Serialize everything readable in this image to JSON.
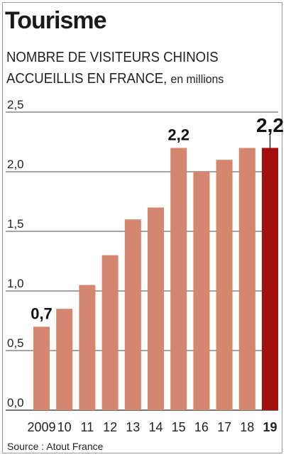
{
  "title": "Tourisme",
  "subtitle_line1": "NOMBRE DE VISITEURS CHINOIS",
  "subtitle_line2": "ACCUEILLIS EN FRANCE,",
  "subtitle_unit": "en millions",
  "source": "Source : Atout France",
  "colors": {
    "bar": "#d4866e",
    "highlight": "#a50e0e",
    "grid": "#4a4a4a",
    "text": "#222222"
  },
  "chart_data": {
    "type": "bar",
    "categories": [
      "2009",
      "10",
      "11",
      "12",
      "13",
      "14",
      "15",
      "16",
      "17",
      "18",
      "19"
    ],
    "values": [
      0.7,
      0.85,
      1.05,
      1.3,
      1.6,
      1.7,
      2.2,
      2.0,
      2.1,
      2.2,
      2.2
    ],
    "ylim": [
      0,
      2.5
    ],
    "yticks": [
      "0,0",
      "0,5",
      "1,0",
      "1,5",
      "2,0",
      "2,5"
    ],
    "ytick_values": [
      0,
      0.5,
      1.0,
      1.5,
      2.0,
      2.5
    ],
    "grid": true,
    "highlight_index": 10,
    "data_labels": [
      {
        "index": 0,
        "text": "0,7"
      },
      {
        "index": 6,
        "text": "2,2"
      },
      {
        "index": 10,
        "text": "2,2"
      }
    ]
  }
}
